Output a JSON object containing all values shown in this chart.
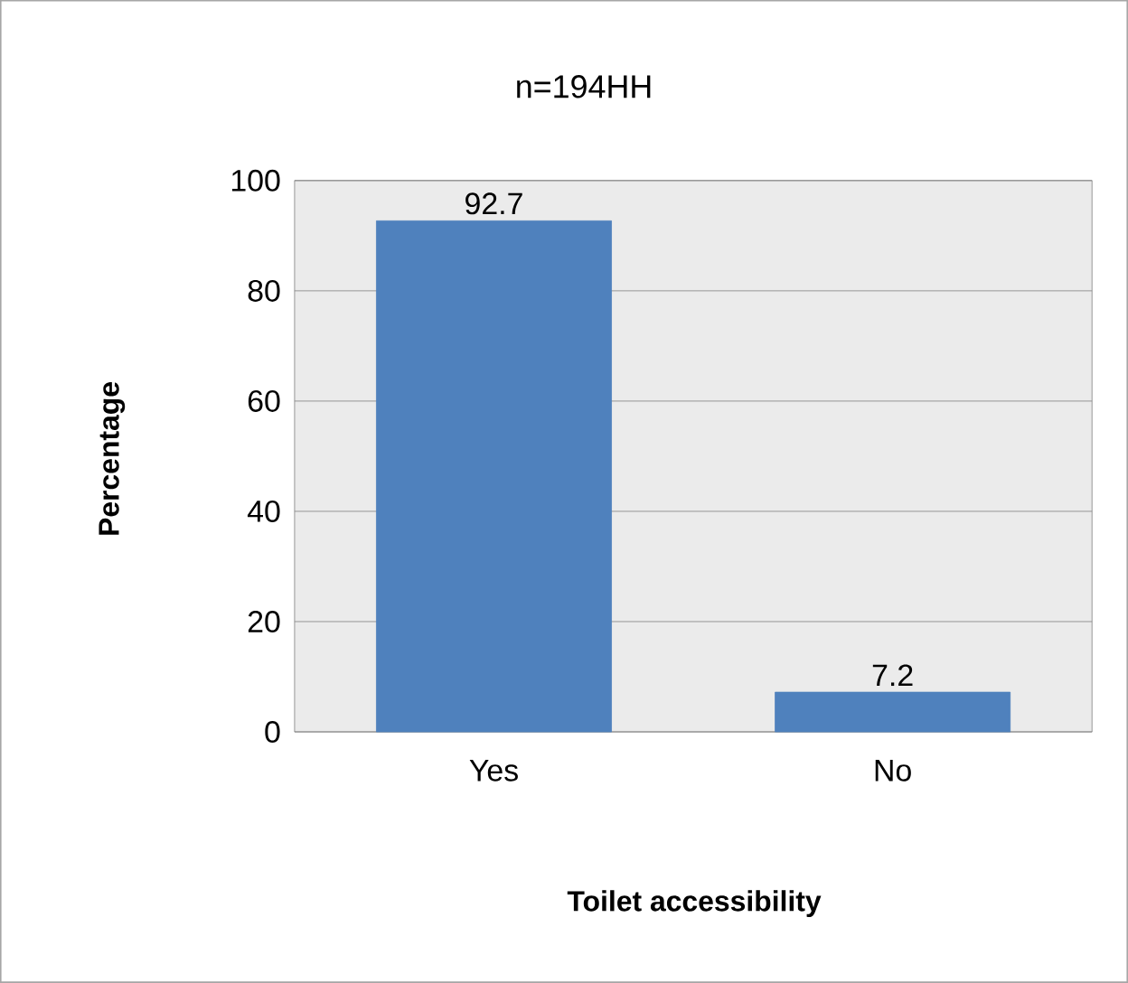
{
  "chart_data": {
    "type": "bar",
    "title": "n=194HH",
    "xlabel": "Toilet accessibility",
    "ylabel": "Percentage",
    "categories": [
      "Yes",
      "No"
    ],
    "values": [
      92.7,
      7.2
    ],
    "color": "#4f81bd",
    "ylim": [
      0,
      100
    ],
    "yticks": [
      0,
      20,
      40,
      60,
      80,
      100
    ],
    "grid": "y",
    "data_labels": true
  }
}
